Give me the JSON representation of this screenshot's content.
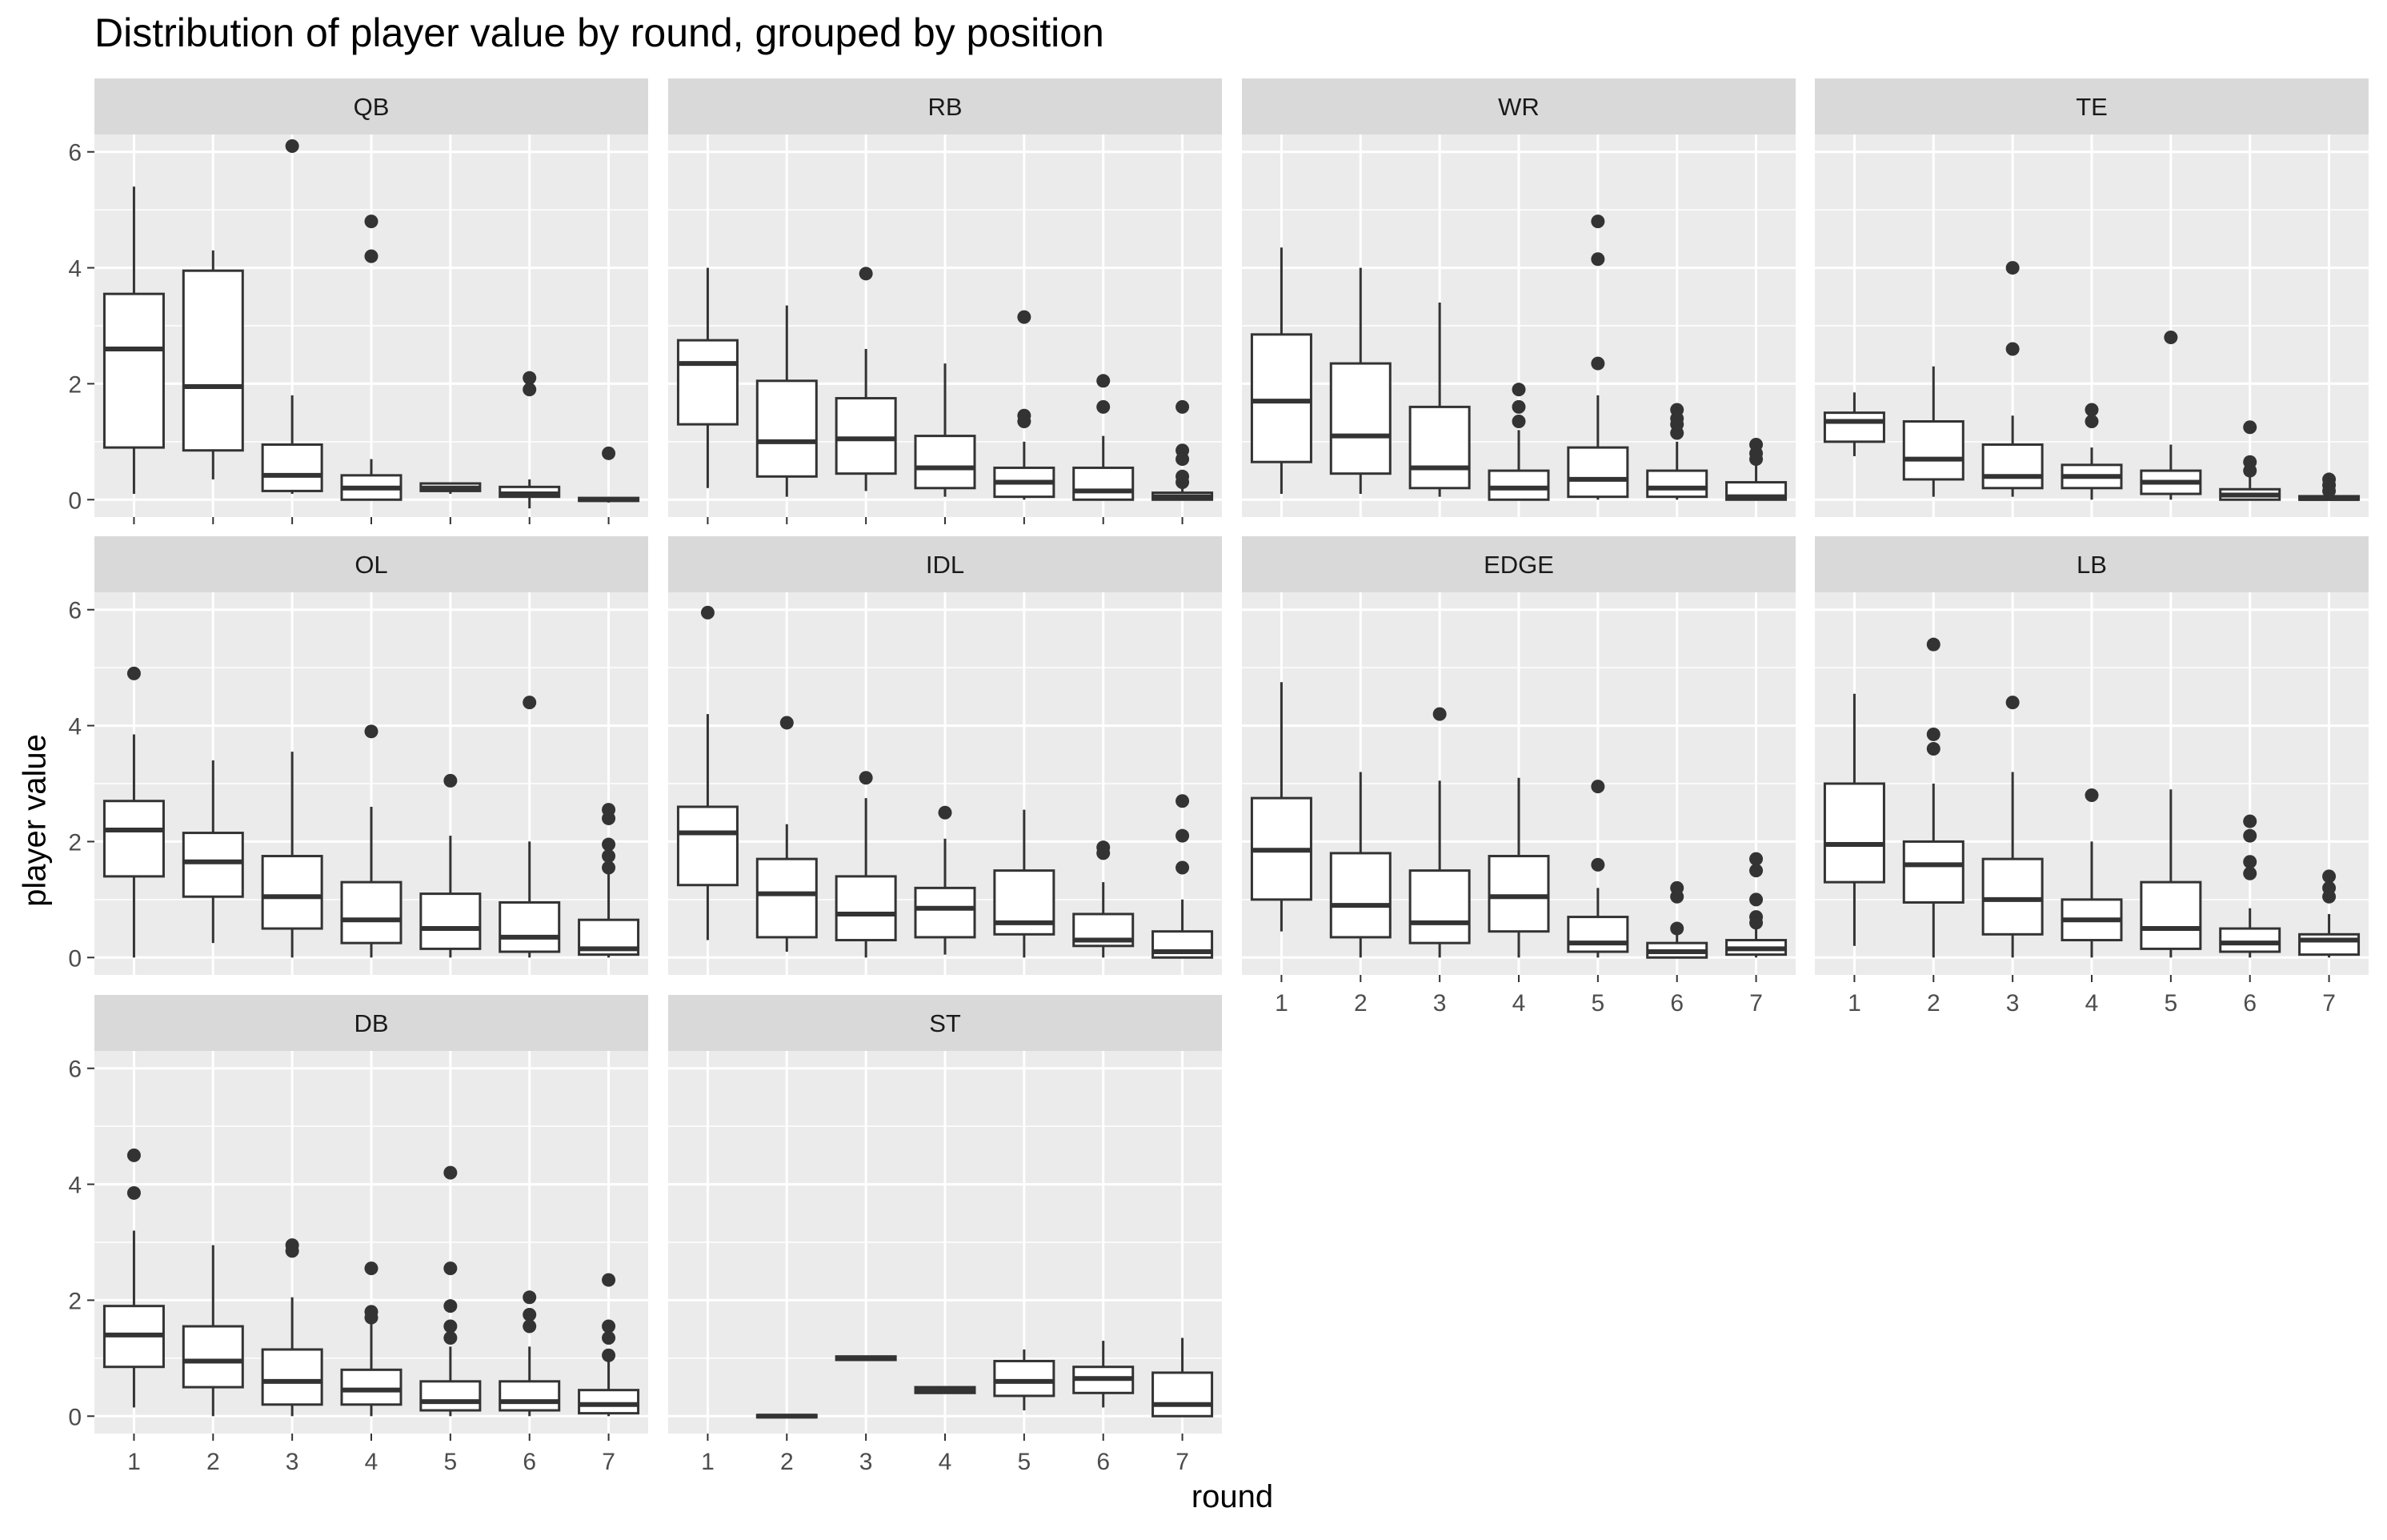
{
  "chart_data": {
    "type": "boxplot",
    "title": "Distribution of player value by round, grouped by position",
    "xlabel": "round",
    "ylabel": "player value",
    "x_ticks": [
      "1",
      "2",
      "3",
      "4",
      "5",
      "6",
      "7"
    ],
    "y_ticks": [
      0,
      2,
      4,
      6
    ],
    "ylim": [
      -0.3,
      6.3
    ],
    "facets": [
      {
        "name": "QB",
        "boxes": [
          {
            "round": 1,
            "q1": 0.9,
            "median": 2.6,
            "q3": 3.55,
            "low": 0.1,
            "high": 5.4,
            "outliers": []
          },
          {
            "round": 2,
            "q1": 0.85,
            "median": 1.95,
            "q3": 3.95,
            "low": 0.35,
            "high": 4.3,
            "outliers": []
          },
          {
            "round": 3,
            "q1": 0.15,
            "median": 0.42,
            "q3": 0.95,
            "low": 0.1,
            "high": 1.8,
            "outliers": [
              6.1
            ]
          },
          {
            "round": 4,
            "q1": 0.0,
            "median": 0.2,
            "q3": 0.42,
            "low": 0.0,
            "high": 0.7,
            "outliers": [
              4.8,
              4.2
            ]
          },
          {
            "round": 5,
            "q1": 0.15,
            "median": 0.2,
            "q3": 0.28,
            "low": 0.1,
            "high": 0.3,
            "outliers": []
          },
          {
            "round": 6,
            "q1": 0.05,
            "median": 0.1,
            "q3": 0.22,
            "low": -0.15,
            "high": 0.35,
            "outliers": [
              2.1,
              1.9
            ]
          },
          {
            "round": 7,
            "q1": -0.02,
            "median": 0.0,
            "q3": 0.03,
            "low": -0.05,
            "high": 0.05,
            "outliers": [
              0.8
            ]
          }
        ]
      },
      {
        "name": "RB",
        "boxes": [
          {
            "round": 1,
            "q1": 1.3,
            "median": 2.35,
            "q3": 2.75,
            "low": 0.2,
            "high": 4.0,
            "outliers": []
          },
          {
            "round": 2,
            "q1": 0.4,
            "median": 1.0,
            "q3": 2.05,
            "low": 0.05,
            "high": 3.35,
            "outliers": []
          },
          {
            "round": 3,
            "q1": 0.45,
            "median": 1.05,
            "q3": 1.75,
            "low": 0.15,
            "high": 2.6,
            "outliers": [
              3.9
            ]
          },
          {
            "round": 4,
            "q1": 0.2,
            "median": 0.55,
            "q3": 1.1,
            "low": 0.05,
            "high": 2.35,
            "outliers": []
          },
          {
            "round": 5,
            "q1": 0.05,
            "median": 0.3,
            "q3": 0.55,
            "low": 0.0,
            "high": 1.0,
            "outliers": [
              3.15,
              1.45,
              1.35
            ]
          },
          {
            "round": 6,
            "q1": 0.0,
            "median": 0.15,
            "q3": 0.55,
            "low": 0.0,
            "high": 1.1,
            "outliers": [
              2.05,
              1.6
            ]
          },
          {
            "round": 7,
            "q1": 0.0,
            "median": 0.05,
            "q3": 0.12,
            "low": 0.0,
            "high": 0.2,
            "outliers": [
              1.6,
              0.85,
              0.7,
              0.4,
              0.3
            ]
          }
        ]
      },
      {
        "name": "WR",
        "boxes": [
          {
            "round": 1,
            "q1": 0.65,
            "median": 1.7,
            "q3": 2.85,
            "low": 0.1,
            "high": 4.35,
            "outliers": []
          },
          {
            "round": 2,
            "q1": 0.45,
            "median": 1.1,
            "q3": 2.35,
            "low": 0.1,
            "high": 4.0,
            "outliers": []
          },
          {
            "round": 3,
            "q1": 0.2,
            "median": 0.55,
            "q3": 1.6,
            "low": 0.05,
            "high": 3.4,
            "outliers": []
          },
          {
            "round": 4,
            "q1": 0.0,
            "median": 0.2,
            "q3": 0.5,
            "low": 0.0,
            "high": 1.2,
            "outliers": [
              1.9,
              1.6,
              1.35
            ]
          },
          {
            "round": 5,
            "q1": 0.05,
            "median": 0.35,
            "q3": 0.9,
            "low": 0.0,
            "high": 1.8,
            "outliers": [
              4.8,
              4.15,
              2.35
            ]
          },
          {
            "round": 6,
            "q1": 0.05,
            "median": 0.2,
            "q3": 0.5,
            "low": 0.0,
            "high": 1.0,
            "outliers": [
              1.55,
              1.4,
              1.3,
              1.15
            ]
          },
          {
            "round": 7,
            "q1": 0.0,
            "median": 0.05,
            "q3": 0.3,
            "low": 0.0,
            "high": 0.6,
            "outliers": [
              0.95,
              0.8,
              0.7
            ]
          }
        ]
      },
      {
        "name": "TE",
        "boxes": [
          {
            "round": 1,
            "q1": 1.0,
            "median": 1.35,
            "q3": 1.5,
            "low": 0.75,
            "high": 1.85,
            "outliers": []
          },
          {
            "round": 2,
            "q1": 0.35,
            "median": 0.7,
            "q3": 1.35,
            "low": 0.05,
            "high": 2.3,
            "outliers": []
          },
          {
            "round": 3,
            "q1": 0.2,
            "median": 0.4,
            "q3": 0.95,
            "low": 0.05,
            "high": 1.45,
            "outliers": [
              4.0,
              2.6
            ]
          },
          {
            "round": 4,
            "q1": 0.2,
            "median": 0.4,
            "q3": 0.6,
            "low": 0.0,
            "high": 0.9,
            "outliers": [
              1.55,
              1.35
            ]
          },
          {
            "round": 5,
            "q1": 0.1,
            "median": 0.3,
            "q3": 0.5,
            "low": 0.0,
            "high": 0.95,
            "outliers": [
              2.8
            ]
          },
          {
            "round": 6,
            "q1": 0.0,
            "median": 0.08,
            "q3": 0.18,
            "low": 0.0,
            "high": 0.4,
            "outliers": [
              1.25,
              0.65,
              0.5
            ]
          },
          {
            "round": 7,
            "q1": 0.0,
            "median": 0.02,
            "q3": 0.06,
            "low": 0.0,
            "high": 0.1,
            "outliers": [
              0.35,
              0.25,
              0.15
            ]
          }
        ]
      },
      {
        "name": "OL",
        "boxes": [
          {
            "round": 1,
            "q1": 1.4,
            "median": 2.2,
            "q3": 2.7,
            "low": 0.0,
            "high": 3.85,
            "outliers": [
              4.9
            ]
          },
          {
            "round": 2,
            "q1": 1.05,
            "median": 1.65,
            "q3": 2.15,
            "low": 0.25,
            "high": 3.4,
            "outliers": []
          },
          {
            "round": 3,
            "q1": 0.5,
            "median": 1.05,
            "q3": 1.75,
            "low": 0.0,
            "high": 3.55,
            "outliers": []
          },
          {
            "round": 4,
            "q1": 0.25,
            "median": 0.65,
            "q3": 1.3,
            "low": 0.0,
            "high": 2.6,
            "outliers": [
              3.9
            ]
          },
          {
            "round": 5,
            "q1": 0.15,
            "median": 0.5,
            "q3": 1.1,
            "low": 0.0,
            "high": 2.1,
            "outliers": [
              3.05
            ]
          },
          {
            "round": 6,
            "q1": 0.1,
            "median": 0.35,
            "q3": 0.95,
            "low": 0.0,
            "high": 2.0,
            "outliers": [
              4.4
            ]
          },
          {
            "round": 7,
            "q1": 0.05,
            "median": 0.15,
            "q3": 0.65,
            "low": 0.0,
            "high": 1.45,
            "outliers": [
              2.55,
              2.4,
              1.95,
              1.75,
              1.55
            ]
          }
        ]
      },
      {
        "name": "IDL",
        "boxes": [
          {
            "round": 1,
            "q1": 1.25,
            "median": 2.15,
            "q3": 2.6,
            "low": 0.3,
            "high": 4.2,
            "outliers": [
              5.95
            ]
          },
          {
            "round": 2,
            "q1": 0.35,
            "median": 1.1,
            "q3": 1.7,
            "low": 0.1,
            "high": 2.3,
            "outliers": [
              4.05
            ]
          },
          {
            "round": 3,
            "q1": 0.3,
            "median": 0.75,
            "q3": 1.4,
            "low": 0.0,
            "high": 2.75,
            "outliers": [
              3.1
            ]
          },
          {
            "round": 4,
            "q1": 0.35,
            "median": 0.85,
            "q3": 1.2,
            "low": 0.05,
            "high": 2.05,
            "outliers": [
              2.5
            ]
          },
          {
            "round": 5,
            "q1": 0.4,
            "median": 0.6,
            "q3": 1.5,
            "low": 0.0,
            "high": 2.55,
            "outliers": []
          },
          {
            "round": 6,
            "q1": 0.2,
            "median": 0.3,
            "q3": 0.75,
            "low": 0.0,
            "high": 1.3,
            "outliers": [
              1.9,
              1.8
            ]
          },
          {
            "round": 7,
            "q1": 0.0,
            "median": 0.1,
            "q3": 0.45,
            "low": 0.0,
            "high": 1.0,
            "outliers": [
              2.7,
              2.1,
              1.55
            ]
          }
        ]
      },
      {
        "name": "EDGE",
        "boxes": [
          {
            "round": 1,
            "q1": 1.0,
            "median": 1.85,
            "q3": 2.75,
            "low": 0.45,
            "high": 4.75,
            "outliers": []
          },
          {
            "round": 2,
            "q1": 0.35,
            "median": 0.9,
            "q3": 1.8,
            "low": 0.0,
            "high": 3.2,
            "outliers": []
          },
          {
            "round": 3,
            "q1": 0.25,
            "median": 0.6,
            "q3": 1.5,
            "low": 0.0,
            "high": 3.05,
            "outliers": [
              4.2
            ]
          },
          {
            "round": 4,
            "q1": 0.45,
            "median": 1.05,
            "q3": 1.75,
            "low": 0.0,
            "high": 3.1,
            "outliers": []
          },
          {
            "round": 5,
            "q1": 0.1,
            "median": 0.25,
            "q3": 0.7,
            "low": 0.0,
            "high": 1.2,
            "outliers": [
              2.95,
              1.6
            ]
          },
          {
            "round": 6,
            "q1": 0.0,
            "median": 0.1,
            "q3": 0.25,
            "low": 0.0,
            "high": 0.4,
            "outliers": [
              1.2,
              1.05,
              0.5
            ]
          },
          {
            "round": 7,
            "q1": 0.05,
            "median": 0.15,
            "q3": 0.3,
            "low": 0.0,
            "high": 0.5,
            "outliers": [
              1.7,
              1.5,
              1.0,
              0.7,
              0.6
            ]
          }
        ]
      },
      {
        "name": "LB",
        "boxes": [
          {
            "round": 1,
            "q1": 1.3,
            "median": 1.95,
            "q3": 3.0,
            "low": 0.2,
            "high": 4.55,
            "outliers": []
          },
          {
            "round": 2,
            "q1": 0.95,
            "median": 1.6,
            "q3": 2.0,
            "low": 0.0,
            "high": 3.0,
            "outliers": [
              5.4,
              3.85,
              3.6
            ]
          },
          {
            "round": 3,
            "q1": 0.4,
            "median": 1.0,
            "q3": 1.7,
            "low": 0.0,
            "high": 3.2,
            "outliers": [
              4.4
            ]
          },
          {
            "round": 4,
            "q1": 0.3,
            "median": 0.65,
            "q3": 1.0,
            "low": 0.0,
            "high": 2.0,
            "outliers": [
              2.8
            ]
          },
          {
            "round": 5,
            "q1": 0.15,
            "median": 0.5,
            "q3": 1.3,
            "low": 0.0,
            "high": 2.9,
            "outliers": []
          },
          {
            "round": 6,
            "q1": 0.1,
            "median": 0.25,
            "q3": 0.5,
            "low": 0.0,
            "high": 0.85,
            "outliers": [
              2.35,
              2.1,
              1.65,
              1.45
            ]
          },
          {
            "round": 7,
            "q1": 0.05,
            "median": 0.3,
            "q3": 0.4,
            "low": 0.0,
            "high": 0.75,
            "outliers": [
              1.4,
              1.2,
              1.05
            ]
          }
        ]
      },
      {
        "name": "DB",
        "boxes": [
          {
            "round": 1,
            "q1": 0.85,
            "median": 1.4,
            "q3": 1.9,
            "low": 0.15,
            "high": 3.2,
            "outliers": [
              4.5,
              3.85
            ]
          },
          {
            "round": 2,
            "q1": 0.5,
            "median": 0.95,
            "q3": 1.55,
            "low": 0.0,
            "high": 2.95,
            "outliers": []
          },
          {
            "round": 3,
            "q1": 0.2,
            "median": 0.6,
            "q3": 1.15,
            "low": 0.0,
            "high": 2.05,
            "outliers": [
              2.95,
              2.85
            ]
          },
          {
            "round": 4,
            "q1": 0.2,
            "median": 0.45,
            "q3": 0.8,
            "low": 0.0,
            "high": 1.65,
            "outliers": [
              2.55,
              1.8,
              1.7
            ]
          },
          {
            "round": 5,
            "q1": 0.1,
            "median": 0.25,
            "q3": 0.6,
            "low": 0.0,
            "high": 1.2,
            "outliers": [
              4.2,
              2.55,
              1.9,
              1.55,
              1.35
            ]
          },
          {
            "round": 6,
            "q1": 0.1,
            "median": 0.25,
            "q3": 0.6,
            "low": 0.0,
            "high": 1.2,
            "outliers": [
              2.05,
              1.75,
              1.55
            ]
          },
          {
            "round": 7,
            "q1": 0.05,
            "median": 0.2,
            "q3": 0.45,
            "low": 0.0,
            "high": 0.95,
            "outliers": [
              2.35,
              1.55,
              1.35,
              1.05
            ]
          }
        ]
      },
      {
        "name": "ST",
        "boxes": [
          {
            "round": 2,
            "q1": -0.02,
            "median": 0.0,
            "q3": 0.02,
            "low": -0.02,
            "high": 0.02,
            "outliers": []
          },
          {
            "round": 3,
            "q1": 0.97,
            "median": 1.0,
            "q3": 1.03,
            "low": 0.97,
            "high": 1.03,
            "outliers": []
          },
          {
            "round": 4,
            "q1": 0.4,
            "median": 0.45,
            "q3": 0.5,
            "low": 0.4,
            "high": 0.5,
            "outliers": []
          },
          {
            "round": 5,
            "q1": 0.35,
            "median": 0.6,
            "q3": 0.95,
            "low": 0.1,
            "high": 1.15,
            "outliers": []
          },
          {
            "round": 6,
            "q1": 0.4,
            "median": 0.65,
            "q3": 0.85,
            "low": 0.15,
            "high": 1.3,
            "outliers": []
          },
          {
            "round": 7,
            "q1": 0.0,
            "median": 0.2,
            "q3": 0.75,
            "low": 0.0,
            "high": 1.35,
            "outliers": []
          }
        ]
      }
    ],
    "colors": {
      "panel_background": "#ebebeb",
      "strip_background": "#d9d9d9",
      "gridline": "#ffffff",
      "box_line": "#333333",
      "box_fill": "#ffffff",
      "tick_text": "#4d4d4d"
    },
    "grid": true,
    "legend": "none"
  }
}
